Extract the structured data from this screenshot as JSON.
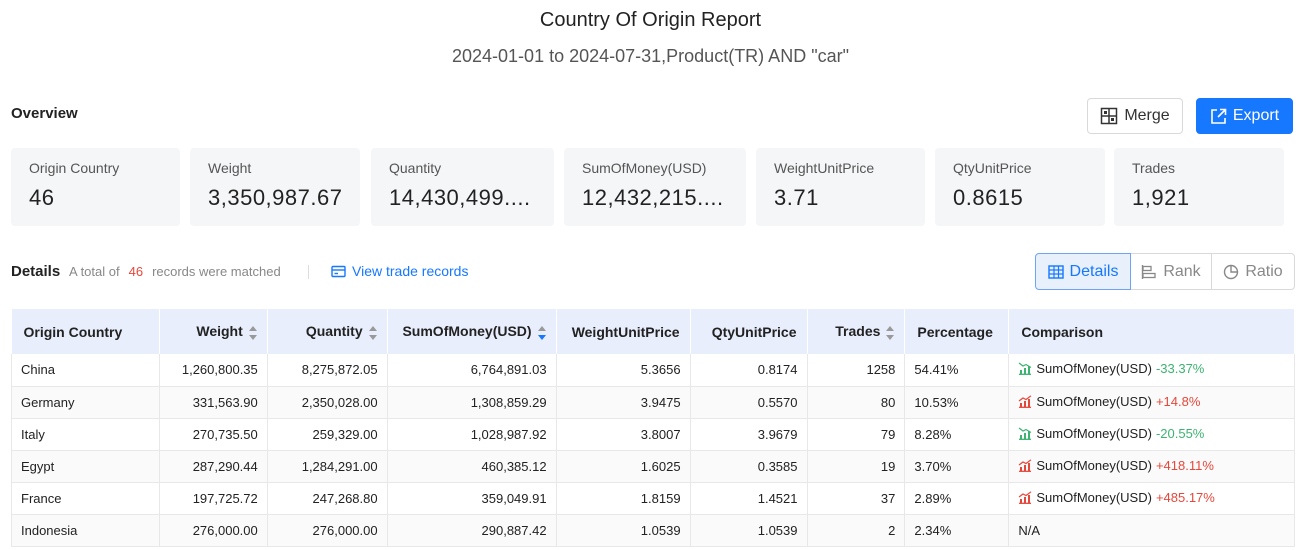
{
  "header": {
    "title": "Country Of Origin Report",
    "subtitle": "2024-01-01 to 2024-07-31,Product(TR) AND \"car\""
  },
  "overview": {
    "label": "Overview",
    "merge_label": "Merge",
    "export_label": "Export",
    "cards": [
      {
        "label": "Origin Country",
        "value": "46"
      },
      {
        "label": "Weight",
        "value": "3,350,987.67"
      },
      {
        "label": "Quantity",
        "value": "14,430,499...."
      },
      {
        "label": "SumOfMoney(USD)",
        "value": "12,432,215...."
      },
      {
        "label": "WeightUnitPrice",
        "value": "3.71"
      },
      {
        "label": "QtyUnitPrice",
        "value": "0.8615"
      },
      {
        "label": "Trades",
        "value": "1,921"
      }
    ]
  },
  "details": {
    "label": "Details",
    "matched_prefix": "A total of",
    "matched_count": "46",
    "matched_suffix": "records were matched",
    "view_link": "View trade records",
    "tabs": [
      "Details",
      "Rank",
      "Ratio"
    ]
  },
  "table": {
    "columns": [
      "Origin Country",
      "Weight",
      "Quantity",
      "SumOfMoney(USD)",
      "WeightUnitPrice",
      "QtyUnitPrice",
      "Trades",
      "Percentage",
      "Comparison"
    ],
    "rows": [
      {
        "country": "China",
        "weight": "1,260,800.35",
        "quantity": "8,275,872.05",
        "money": "6,764,891.03",
        "wup": "5.3656",
        "qup": "0.8174",
        "trades": "1258",
        "pct": "54.41%",
        "cmp_label": "SumOfMoney(USD)",
        "cmp_value": "-33.37%",
        "trend": "down"
      },
      {
        "country": "Germany",
        "weight": "331,563.90",
        "quantity": "2,350,028.00",
        "money": "1,308,859.29",
        "wup": "3.9475",
        "qup": "0.5570",
        "trades": "80",
        "pct": "10.53%",
        "cmp_label": "SumOfMoney(USD)",
        "cmp_value": "+14.8%",
        "trend": "up"
      },
      {
        "country": "Italy",
        "weight": "270,735.50",
        "quantity": "259,329.00",
        "money": "1,028,987.92",
        "wup": "3.8007",
        "qup": "3.9679",
        "trades": "79",
        "pct": "8.28%",
        "cmp_label": "SumOfMoney(USD)",
        "cmp_value": "-20.55%",
        "trend": "down"
      },
      {
        "country": "Egypt",
        "weight": "287,290.44",
        "quantity": "1,284,291.00",
        "money": "460,385.12",
        "wup": "1.6025",
        "qup": "0.3585",
        "trades": "19",
        "pct": "3.70%",
        "cmp_label": "SumOfMoney(USD)",
        "cmp_value": "+418.11%",
        "trend": "up"
      },
      {
        "country": "France",
        "weight": "197,725.72",
        "quantity": "247,268.80",
        "money": "359,049.91",
        "wup": "1.8159",
        "qup": "1.4521",
        "trades": "37",
        "pct": "2.89%",
        "cmp_label": "SumOfMoney(USD)",
        "cmp_value": "+485.17%",
        "trend": "up"
      },
      {
        "country": "Indonesia",
        "weight": "276,000.00",
        "quantity": "276,000.00",
        "money": "290,887.42",
        "wup": "1.0539",
        "qup": "1.0539",
        "trades": "2",
        "pct": "2.34%",
        "cmp_label": "",
        "cmp_value": "N/A",
        "trend": "none"
      }
    ]
  },
  "colors": {
    "accent": "#1677ff",
    "up": "#e5483b",
    "down": "#3cb371",
    "header_bg": "#e8eefb"
  }
}
